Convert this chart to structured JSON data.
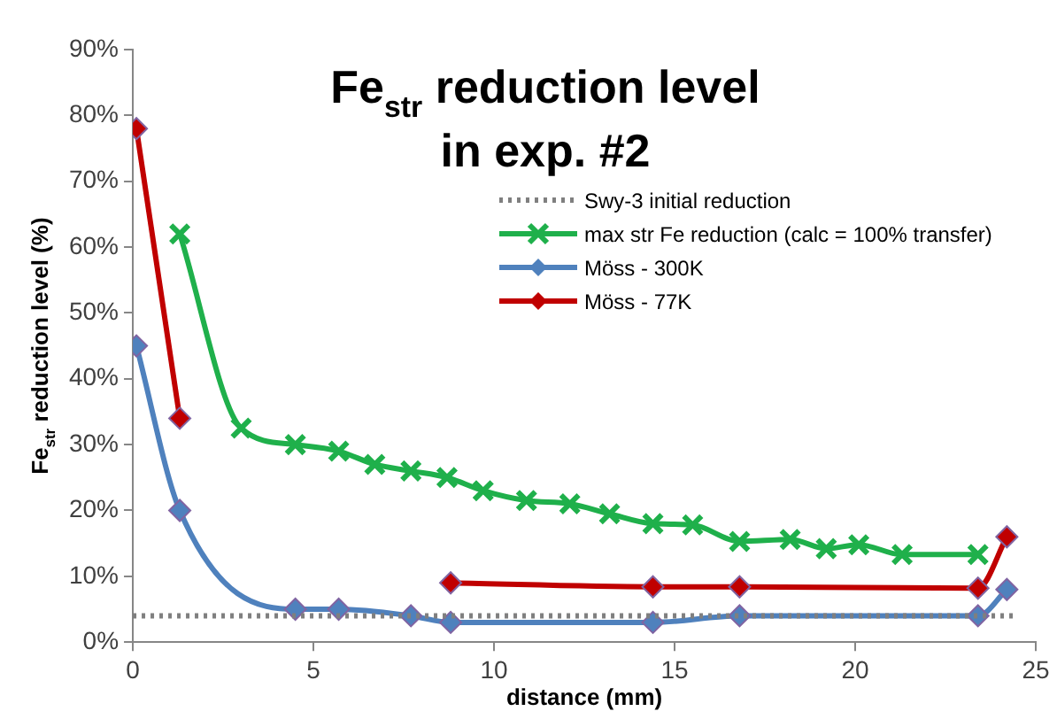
{
  "chart_data": {
    "type": "line",
    "title": "Fe$_{str}$ reduction level in exp. #2",
    "xlabel": "distance (mm)",
    "ylabel": "Fe$_{str}$ reduction level (%)",
    "xlim": [
      0,
      25
    ],
    "xticks": [
      0,
      5,
      10,
      15,
      20,
      25
    ],
    "ylim": [
      0,
      90
    ],
    "yticks": [
      {
        "value": 0,
        "label": "0%"
      },
      {
        "value": 10,
        "label": "10%"
      },
      {
        "value": 20,
        "label": "20%"
      },
      {
        "value": 30,
        "label": "30%"
      },
      {
        "value": 40,
        "label": "40%"
      },
      {
        "value": 50,
        "label": "50%"
      },
      {
        "value": 60,
        "label": "60%"
      },
      {
        "value": 70,
        "label": "70%"
      },
      {
        "value": 80,
        "label": "80%"
      },
      {
        "value": 90,
        "label": "90%"
      }
    ],
    "grid": false,
    "legend": "top right",
    "series": [
      {
        "name": "Swy-3 initial reduction",
        "color": "#7f7f7f",
        "line_style": "dotted",
        "marker": "none",
        "x": [
          0,
          24.5
        ],
        "values": [
          4,
          4
        ]
      },
      {
        "name": "max str Fe reduction (calc = 100% transfer)",
        "color": "#1fb04b",
        "marker": "cross",
        "x": [
          1.3,
          3.0,
          4.5,
          5.7,
          6.7,
          7.7,
          8.7,
          9.7,
          10.9,
          12.1,
          13.2,
          14.4,
          15.5,
          16.8,
          18.2,
          19.2,
          20.1,
          21.3,
          23.4
        ],
        "values": [
          62,
          32.5,
          30,
          29,
          27,
          26,
          25,
          23,
          21.5,
          21,
          19.5,
          18,
          17.8,
          15.3,
          15.6,
          14.2,
          14.8,
          13.3,
          13.3
        ]
      },
      {
        "name": "Möss - 300K",
        "color": "#4f81bd",
        "marker": "diamond",
        "x": [
          0.1,
          1.3,
          4.5,
          5.7,
          7.7,
          8.8,
          14.4,
          16.8,
          23.4,
          24.2
        ],
        "values": [
          45,
          20,
          5,
          5,
          4,
          3,
          3,
          4,
          4,
          8
        ]
      },
      {
        "name": "Möss - 77K",
        "color": "#c00000",
        "marker": "diamond",
        "x": [
          0.1,
          1.3,
          5,
          8.8,
          14.4,
          16.8,
          23.4,
          24.2
        ],
        "values": [
          78,
          34,
          null,
          9,
          8.4,
          8.4,
          8.2,
          16
        ]
      }
    ]
  }
}
